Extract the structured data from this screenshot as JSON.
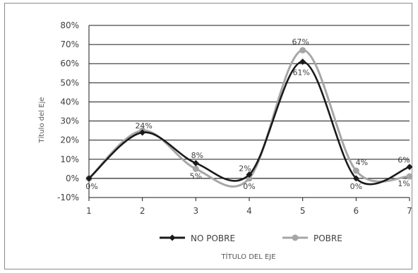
{
  "chart_data": {
    "type": "line",
    "smooth": true,
    "title": "",
    "xlabel": "TÍTULO DEL EJE",
    "ylabel": "Título del Eje",
    "x": [
      1,
      2,
      3,
      4,
      5,
      6,
      7
    ],
    "ylim": [
      -10,
      80
    ],
    "yticks": [
      "-10%",
      "0%",
      "10%",
      "20%",
      "30%",
      "40%",
      "50%",
      "60%",
      "70%",
      "80%"
    ],
    "xticks": [
      "1",
      "2",
      "3",
      "4",
      "5",
      "6",
      "7"
    ],
    "grid": "horizontal",
    "legend_position": "bottom",
    "series": [
      {
        "name": "NO POBRE",
        "color": "#1a1a1a",
        "marker": "diamond",
        "values": [
          0,
          24,
          8,
          2,
          61,
          0,
          6
        ],
        "labels": [
          "0%",
          "24%",
          "8%",
          "2%",
          "61%",
          "0%",
          "6%"
        ]
      },
      {
        "name": "POBRE",
        "color": "#a6a6a6",
        "marker": "circle",
        "values": [
          0,
          25,
          5,
          0,
          67,
          4,
          1
        ],
        "labels": [
          "",
          "",
          "5%",
          "0%",
          "67%",
          "4%",
          "1%"
        ]
      }
    ]
  }
}
